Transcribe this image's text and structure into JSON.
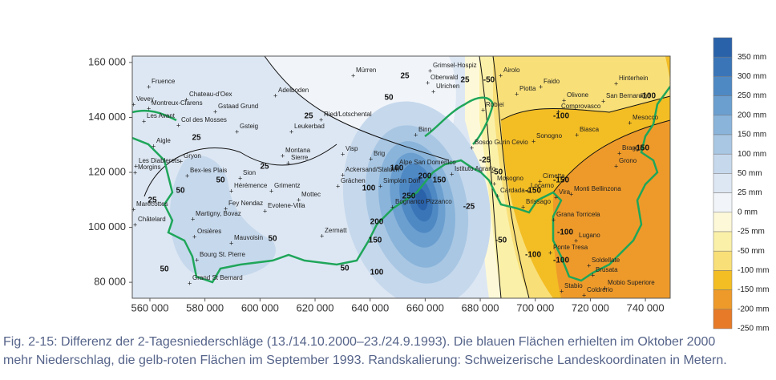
{
  "map": {
    "xlim": [
      553600,
      749000
    ],
    "ylim": [
      74200,
      162300
    ],
    "xticks": [
      {
        "value": 560000,
        "label": "560 000"
      },
      {
        "value": 580000,
        "label": "580 000"
      },
      {
        "value": 600000,
        "label": "600 000"
      },
      {
        "value": 620000,
        "label": "620 000"
      },
      {
        "value": 640000,
        "label": "640 000"
      },
      {
        "value": 660000,
        "label": "660 000"
      },
      {
        "value": 680000,
        "label": "680 000"
      },
      {
        "value": 700000,
        "label": "700 000"
      },
      {
        "value": 720000,
        "label": "720 000"
      },
      {
        "value": 740000,
        "label": "740 000"
      }
    ],
    "yticks": [
      {
        "value": 160000,
        "label": "160 000"
      },
      {
        "value": 140000,
        "label": "140 000"
      },
      {
        "value": 120000,
        "label": "120 000"
      },
      {
        "value": 100000,
        "label": "100 000"
      },
      {
        "value": 80000,
        "label": "80 000"
      }
    ],
    "places": [
      "Fruence",
      "Vevey",
      "Montreux-Clarens",
      "Les Avant",
      "Chateau-d'Oex",
      "Gstaad Grund",
      "Col des Mosses",
      "Gsteig",
      "Aigle",
      "Gryon",
      "Les Diablerets",
      "Morgins",
      "Bex-les Plais",
      "Sion",
      "Hérémence",
      "Fey Nendaz",
      "Marécottes",
      "Martigny, Bovaz",
      "Châtelard",
      "Orsières",
      "Mauvoisin",
      "Bourg St. Pierre",
      "Grand St Bernard",
      "Adelboden",
      "Leukerbad",
      "Ried/Lotschental",
      "Montana",
      "Sierre",
      "Grimentz",
      "Mottec",
      "Evolene-Villa",
      "Zermatt",
      "Mürren",
      "Visp",
      "Brig",
      "Ackersand/Stalden",
      "Grächen",
      "Simplon Dorf",
      "Binn",
      "Alpe San Domenico",
      "Istituto Agrario",
      "Bognanco Pizzanco",
      "Grimsel-Hospiz",
      "Oberwald",
      "Ulrichen",
      "Airolo",
      "Faido",
      "Piotta",
      "Olivone",
      "Hinterhein",
      "San Bernardino",
      "Comprovasco",
      "Robiei",
      "Mesocco",
      "Biasca",
      "Sonogno",
      "Bosco Gurin Cevio",
      "Braggio",
      "Grono",
      "Mosogno",
      "Cimetta",
      "Locarno",
      "Monti Bellinzona",
      "Vira",
      "Cardada",
      "Brissago",
      "Grana Torricela",
      "Lugano",
      "Ponte Tresa",
      "Stabio",
      "Soldellate",
      "Brusata",
      "Mobio Superiore",
      "Coldrerio"
    ],
    "contour_labels": [
      "25",
      "25",
      "25",
      "25",
      "25",
      "25",
      "50",
      "50",
      "50",
      "50",
      "50",
      "50",
      "100",
      "100",
      "100",
      "150",
      "150",
      "200",
      "200",
      "250",
      "-25",
      "-25",
      "-50",
      "-50",
      "-100",
      "-100",
      "-100",
      "-150",
      "-150",
      "-150",
      "-100",
      "-100",
      "-50"
    ]
  },
  "legend": {
    "items": [
      {
        "label": "350 mm",
        "color": "#2a62aa"
      },
      {
        "label": "300 mm",
        "color": "#3a75b8"
      },
      {
        "label": "250 mm",
        "color": "#4f89c4"
      },
      {
        "label": "200 mm",
        "color": "#6b9fd0"
      },
      {
        "label": "150 mm",
        "color": "#8ab4da"
      },
      {
        "label": "100 mm",
        "color": "#a9c7e3"
      },
      {
        "label": "50 mm",
        "color": "#c6d8ec"
      },
      {
        "label": "25 mm",
        "color": "#dde7f3"
      },
      {
        "label": "0 mm",
        "color": "#f1f5fa"
      },
      {
        "label": "-25 mm",
        "color": "#fdf9d8"
      },
      {
        "label": "-50 mm",
        "color": "#fbf0a8"
      },
      {
        "label": "-100 mm",
        "color": "#f8df78"
      },
      {
        "label": "-150 mm",
        "color": "#f3bd24"
      },
      {
        "label": "-200 mm",
        "color": "#ee9a2a"
      },
      {
        "label": "-250 mm",
        "color": "#e67a28"
      }
    ]
  },
  "caption": [
    "Fig. 2-15: Differenz der 2-Tagesniederschläge (13./14.10.2000–23./24.9.1993). Die blauen Flächen erhielten im Oktober 2000",
    "mehr Niederschlag, die gelb-roten Flächen im September 1993. Randskalierung: Schweizerische Landeskoordinaten in Metern."
  ]
}
